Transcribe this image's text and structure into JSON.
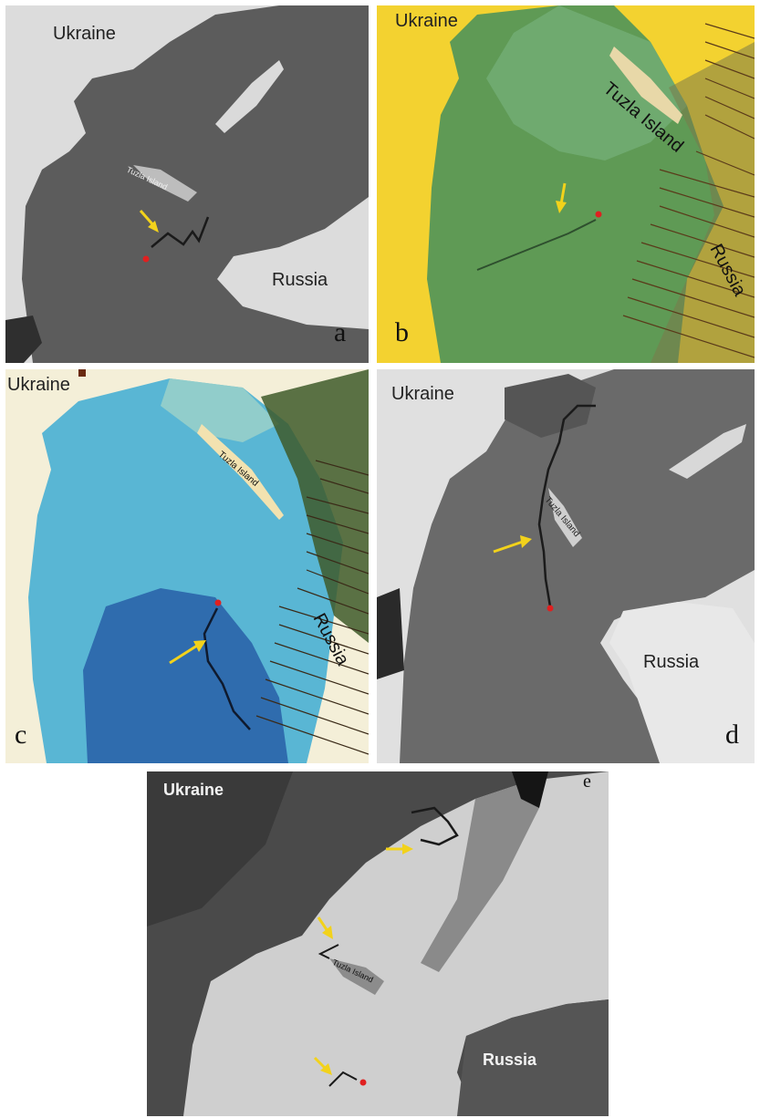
{
  "panels": {
    "a": {
      "letter": "a",
      "ukraine": "Ukraine",
      "russia": "Russia",
      "island": "Tuzla Island"
    },
    "b": {
      "letter": "b",
      "ukraine": "Ukraine",
      "russia": "Russia",
      "island": "Tuzla Island"
    },
    "c": {
      "letter": "c",
      "ukraine": "Ukraine",
      "russia": "Russia",
      "island": "Tuzla Island"
    },
    "d": {
      "letter": "d",
      "ukraine": "Ukraine",
      "russia": "Russia",
      "island": "Tuzla Island"
    },
    "e": {
      "letter": "e",
      "ukraine": "Ukraine",
      "russia": "Russia",
      "island": "Tuzla Island"
    }
  },
  "colors": {
    "arrow": "#f2d21b",
    "origin_marker": "#e02020"
  }
}
